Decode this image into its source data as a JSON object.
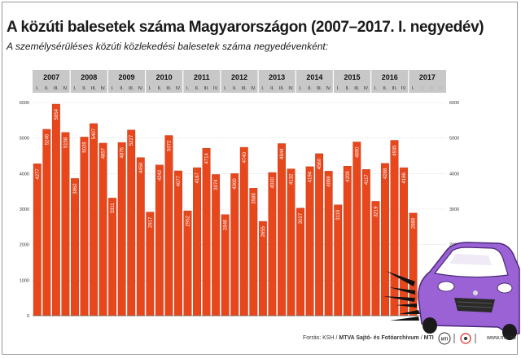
{
  "title": "A közúti balesetek száma Magyarországon (2007–2017. I. negyedév)",
  "subtitle": "A személysérüléses közúti közlekedési balesetek száma negyedévenként:",
  "footer": {
    "source_label": "Forrás: KSH /",
    "agency": "MTVA Sajtó- és Fotóarchívum",
    "separator": "/",
    "brand": "MTI",
    "logo_text": "MTI",
    "website": "www.mti.hu"
  },
  "colors": {
    "bar": "#e8471c",
    "bar_stroke": "#b53010",
    "header_band": "#c8c8c8",
    "grid": "#d0d0d0",
    "car_body": "#9b62d6"
  },
  "illustration": {
    "icon": "purple-car-crash-icon"
  },
  "chart_data": {
    "type": "bar",
    "years": [
      "2007",
      "2008",
      "2009",
      "2010",
      "2011",
      "2012",
      "2013",
      "2014",
      "2015",
      "2016",
      "2017"
    ],
    "quarters": [
      "I.",
      "II.",
      "III.",
      "IV."
    ],
    "values": [
      4277,
      5246,
      5954,
      5158,
      3862,
      5028,
      5407,
      4857,
      3311,
      4876,
      5227,
      4450,
      2917,
      4242,
      5072,
      4077,
      2952,
      4167,
      4714,
      3974,
      2846,
      4000,
      4740,
      3588,
      2655,
      4030,
      4844,
      4132,
      3027,
      4194,
      4560,
      4068,
      3119,
      4209,
      4890,
      4117,
      3219,
      4288,
      4935,
      4166,
      2888
    ],
    "ylim": [
      0,
      6000
    ],
    "yticks": [
      0,
      1000,
      2000,
      3000,
      4000,
      5000,
      6000
    ],
    "grid": true,
    "axes": "left and right"
  }
}
